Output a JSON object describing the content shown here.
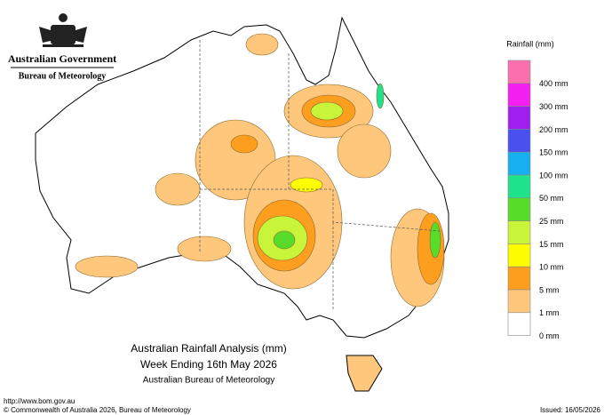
{
  "header": {
    "government": "Australian Government",
    "agency": "Bureau of Meteorology"
  },
  "legend": {
    "title": "Rainfall (mm)",
    "colors": [
      "#fb6fae",
      "#f41ff0",
      "#a01ef0",
      "#4a50ee",
      "#16b0f0",
      "#1ee28c",
      "#58dc2a",
      "#c8f43a",
      "#fefe00",
      "#fd9e1f",
      "#fec77c",
      "#ffffff"
    ],
    "labels": [
      "400 mm",
      "300 mm",
      "200 mm",
      "150 mm",
      "100 mm",
      "50 mm",
      "25 mm",
      "15 mm",
      "10 mm",
      "5 mm",
      "1 mm",
      "0 mm"
    ]
  },
  "map_title": {
    "line1": "Australian Rainfall Analysis (mm)",
    "line2": "Week Ending 16th May 2026",
    "line3": "Australian Bureau of Meteorology"
  },
  "footer": {
    "url": "http://www.bom.gov.au",
    "copyright": "© Commonwealth of Australia 2026, Bureau of Meteorology",
    "issued": "Issued: 16/05/2026"
  }
}
